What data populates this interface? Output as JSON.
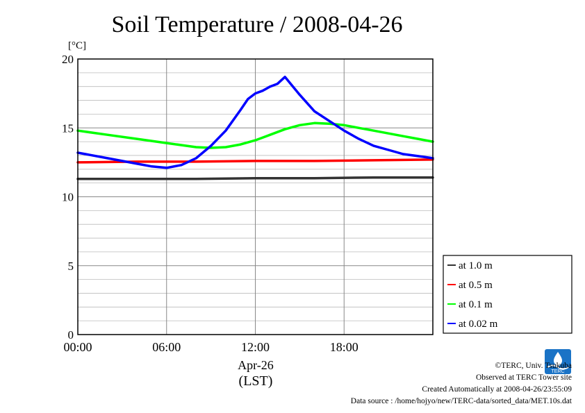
{
  "chart_data": {
    "type": "line",
    "title": "Soil Temperature / 2008-04-26",
    "ylabel": "[°C]",
    "xlabel_date": "Apr-26",
    "xlabel_unit": "(LST)",
    "xlim": [
      0,
      24
    ],
    "ylim": [
      0,
      20
    ],
    "x_ticks": [
      0,
      6,
      12,
      18
    ],
    "x_tick_labels": [
      "00:00",
      "06:00",
      "12:00",
      "18:00"
    ],
    "y_ticks": [
      0,
      5,
      10,
      15,
      20
    ],
    "y_tick_labels": [
      "0",
      "5",
      "10",
      "15",
      "20"
    ],
    "grid": true,
    "legend_position": "right",
    "series": [
      {
        "name": "at 1.0 m",
        "color": "#333333",
        "x": [
          0,
          4,
          8,
          12,
          16,
          20,
          24
        ],
        "y": [
          11.3,
          11.3,
          11.3,
          11.35,
          11.35,
          11.4,
          11.4
        ]
      },
      {
        "name": "at 0.5 m",
        "color": "#ff0000",
        "x": [
          0,
          4,
          8,
          12,
          16,
          20,
          24
        ],
        "y": [
          12.5,
          12.55,
          12.55,
          12.6,
          12.6,
          12.65,
          12.7
        ]
      },
      {
        "name": "at 0.1 m",
        "color": "#00ff00",
        "x": [
          0,
          2,
          4,
          6,
          8,
          9,
          10,
          11,
          12,
          13,
          14,
          15,
          16,
          17,
          18,
          19,
          20,
          21,
          22,
          23,
          24
        ],
        "y": [
          14.8,
          14.5,
          14.2,
          13.9,
          13.6,
          13.55,
          13.6,
          13.8,
          14.1,
          14.5,
          14.9,
          15.2,
          15.35,
          15.3,
          15.2,
          15.0,
          14.8,
          14.6,
          14.4,
          14.2,
          14.0
        ]
      },
      {
        "name": "at 0.02 m",
        "color": "#0000ff",
        "x": [
          0,
          2,
          4,
          5,
          6,
          7,
          8,
          9,
          10,
          11,
          11.5,
          12,
          12.5,
          13,
          13.5,
          14,
          15,
          16,
          17,
          18,
          19,
          20,
          21,
          22,
          23,
          24
        ],
        "y": [
          13.2,
          12.8,
          12.4,
          12.2,
          12.1,
          12.3,
          12.8,
          13.7,
          14.8,
          16.3,
          17.1,
          17.5,
          17.7,
          18.0,
          18.2,
          18.7,
          17.4,
          16.2,
          15.5,
          14.8,
          14.2,
          13.7,
          13.4,
          13.1,
          12.95,
          12.8
        ]
      }
    ]
  },
  "credits": {
    "copyright": "©TERC, Univ. Tsukuba",
    "observed": "Observed at TERC Tower site",
    "created": "Created Automatically at 2008-04-26/23:55:09",
    "source": "Data source : /home/hojyo/new/TERC-data/sorted_data/MET.10s.dat",
    "logo_text": "TERC"
  }
}
